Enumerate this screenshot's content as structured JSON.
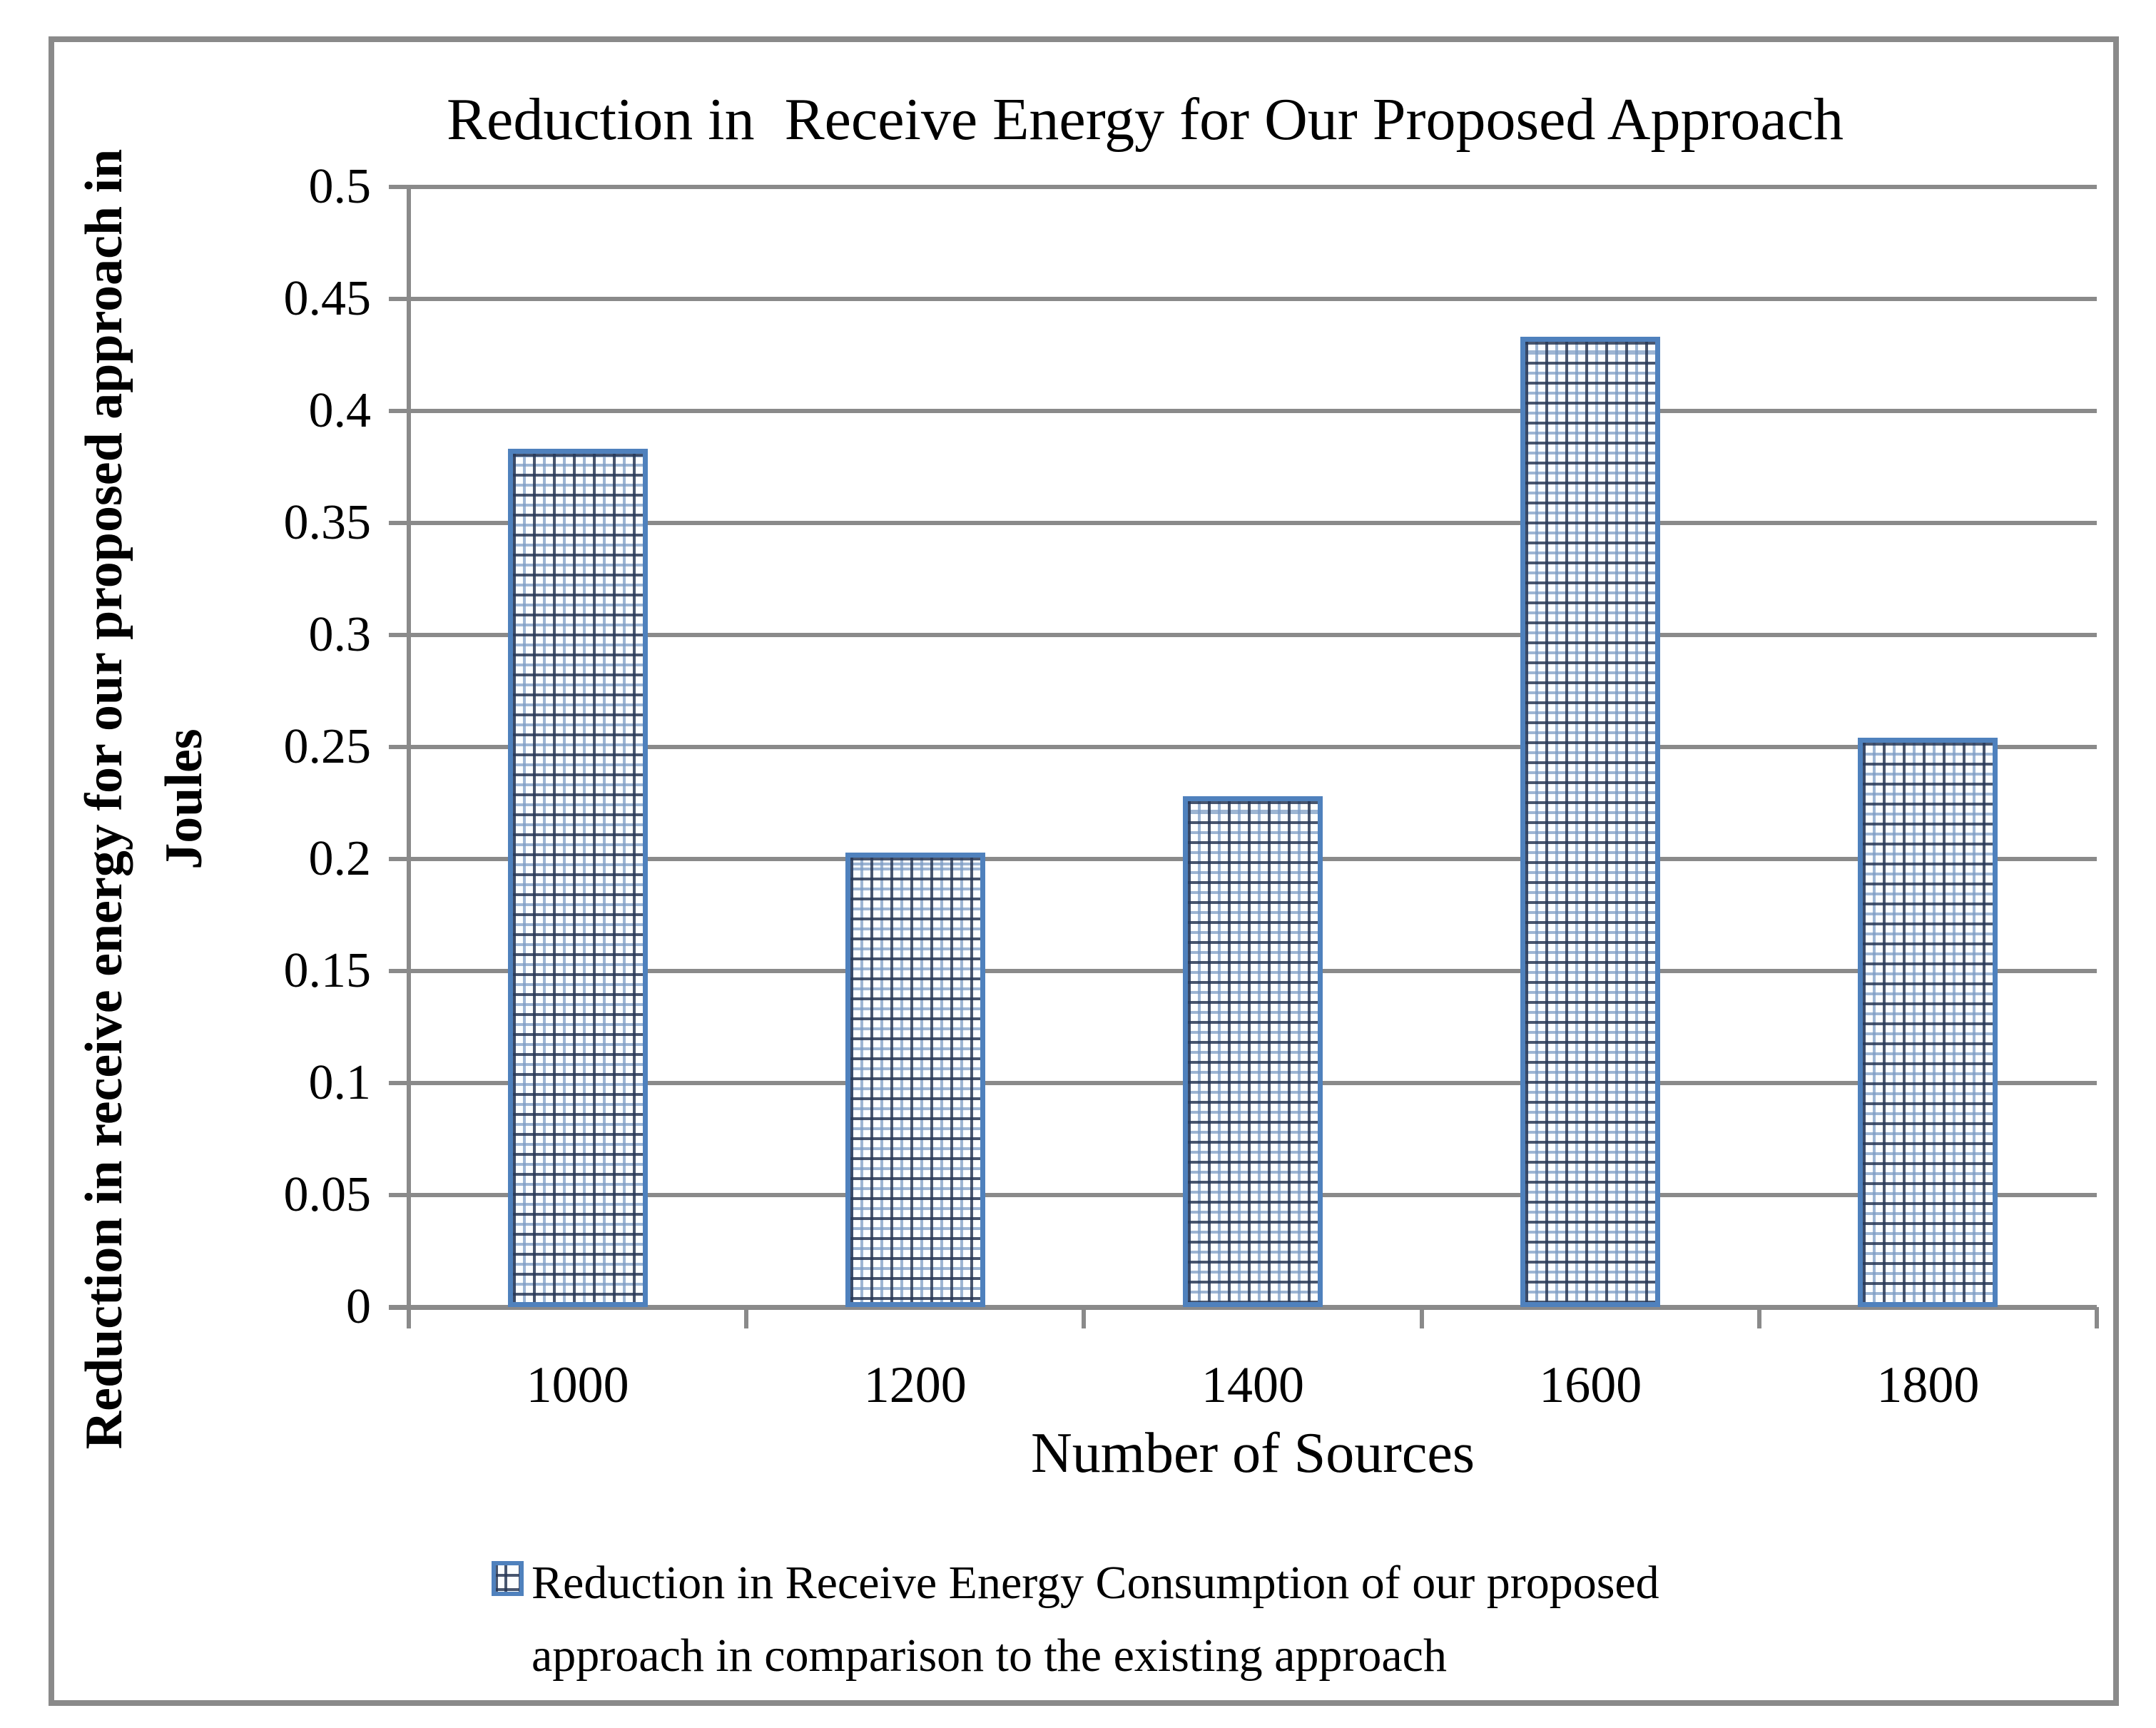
{
  "chart_data": {
    "type": "bar",
    "title": "Reduction in  Receive Energy for Our Proposed Approach",
    "xlabel": "Number of Sources",
    "ylabel_line1": "Reduction in receive energy for our proposed approach in",
    "ylabel_line2": "Joules",
    "categories": [
      "1000",
      "1200",
      "1400",
      "1600",
      "1800"
    ],
    "values": [
      0.383,
      0.203,
      0.228,
      0.433,
      0.254
    ],
    "series_name": "Reduction in Receive Energy Consumption of our proposed approach in comparison to the existing approach",
    "legend_line1": "Reduction in Receive Energy Consumption of our proposed",
    "legend_line2": "approach in comparison to the existing approach",
    "ylim": [
      0,
      0.5
    ],
    "ytick_labels": [
      "0",
      "0.05",
      "0.1",
      "0.15",
      "0.2",
      "0.25",
      "0.3",
      "0.35",
      "0.4",
      "0.45",
      "0.5"
    ],
    "ytick_values": [
      0,
      0.05,
      0.1,
      0.15,
      0.2,
      0.25,
      0.3,
      0.35,
      0.4,
      0.45,
      0.5
    ],
    "grid": "horizontal",
    "legend_position": "bottom",
    "colors": {
      "bar_border": "#4f81bd",
      "bar_pattern_dark": "#283856",
      "bar_pattern_light": "#7d9cc4",
      "bar_fill": "#fcfeff",
      "gridline": "#8a8a8a",
      "frame_border": "#8a8a8a",
      "text": "#000000"
    }
  }
}
